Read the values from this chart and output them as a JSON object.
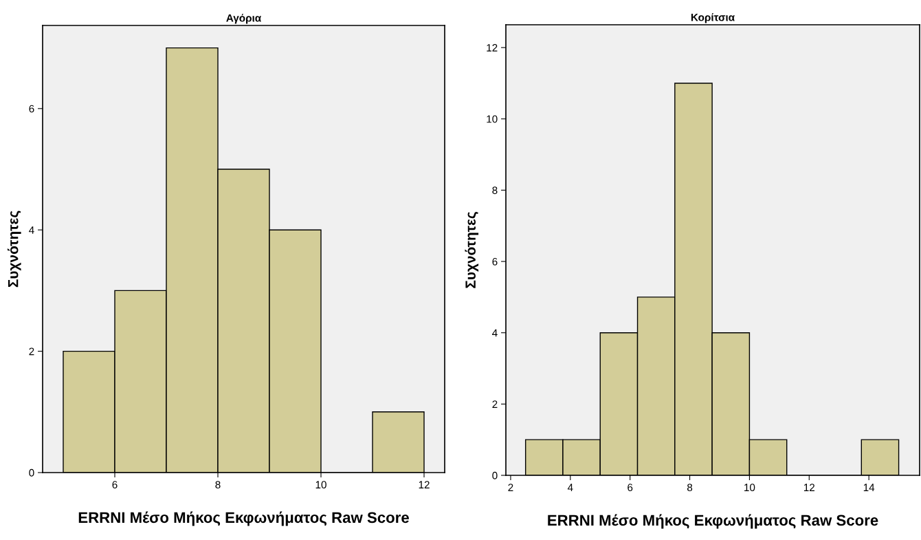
{
  "chart_data": [
    {
      "type": "histogram",
      "title": "Αγόρια",
      "xlabel": "ERRNI Μέσο Μήκος Εκφωνήματος Raw Score",
      "ylabel": "Συχνότητες",
      "bins": [
        5,
        6,
        7,
        8,
        9,
        10,
        11,
        12
      ],
      "values": [
        2,
        3,
        7,
        5,
        4,
        0,
        1
      ],
      "color": "#d3cd98",
      "xlim": [
        4.6,
        12.4
      ],
      "ylim": [
        0,
        7.37
      ],
      "xticks": [
        6,
        8,
        10,
        12
      ],
      "yticks": [
        0,
        2,
        4,
        6
      ],
      "grid": false,
      "legend": false
    },
    {
      "type": "histogram",
      "title": "Κορίτσια",
      "xlabel": "ERRNI Μέσο Μήκος Εκφωνήματος Raw Score",
      "ylabel": "Συχνότητες",
      "bins": [
        2.5,
        3.75,
        5,
        6.25,
        7.5,
        8.75,
        10,
        11.25,
        12.5,
        13.75,
        15
      ],
      "values": [
        1,
        1,
        4,
        5,
        11,
        4,
        1,
        0,
        0,
        1
      ],
      "color": "#d3cd98",
      "xlim": [
        1.84,
        15.7
      ],
      "ylim": [
        0,
        12.64
      ],
      "xticks": [
        2,
        4,
        6,
        8,
        10,
        12,
        14
      ],
      "yticks": [
        0,
        2,
        4,
        6,
        8,
        10,
        12
      ],
      "grid": false,
      "legend": false
    }
  ]
}
